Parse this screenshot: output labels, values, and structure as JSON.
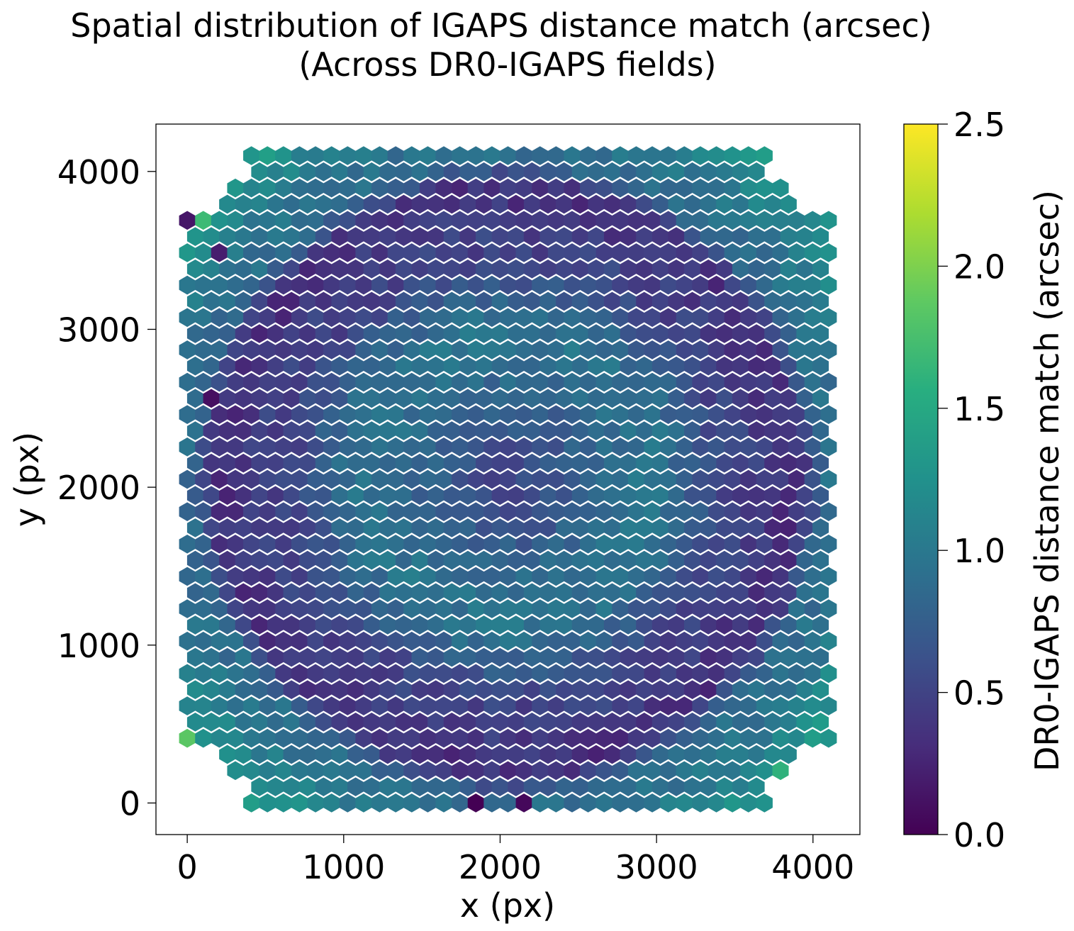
{
  "chart_data": {
    "type": "heatmap",
    "subtype": "hexbin",
    "title_line1": "Spatial distribution of IGAPS distance match (arcsec)",
    "title_line2": "(Across DR0-IGAPS fields)",
    "xlabel": "x (px)",
    "ylabel": "y (px)",
    "colorbar_label": "DR0-IGAPS distance match (arcsec)",
    "colormap": "viridis",
    "xlim": [
      -200,
      4300
    ],
    "ylim": [
      -200,
      4300
    ],
    "x_ticks": [
      0,
      1000,
      2000,
      3000,
      4000
    ],
    "x_tick_labels": [
      "0",
      "1000",
      "2000",
      "3000",
      "4000"
    ],
    "y_ticks": [
      0,
      1000,
      2000,
      3000,
      4000
    ],
    "y_tick_labels": [
      "0",
      "1000",
      "2000",
      "3000",
      "4000"
    ],
    "colorbar_range": [
      0.0,
      2.5
    ],
    "colorbar_ticks": [
      0.0,
      0.5,
      1.0,
      1.5,
      2.0,
      2.5
    ],
    "colorbar_tick_labels": [
      "0.0",
      "0.5",
      "1.0",
      "1.5",
      "2.0",
      "2.5"
    ],
    "grid": false,
    "hex_grid": {
      "x_min": 0,
      "x_max": 4100,
      "y_min": 0,
      "y_max": 4100,
      "nx": 41,
      "ny": 41
    },
    "data_summary": {
      "center_value": 0.55,
      "central_ring_value": 0.95,
      "mid_ring_value": 0.5,
      "outer_ring_value": 0.35,
      "edge_value": 0.9,
      "corner_value": 1.5,
      "noise": 0.12
    },
    "notable_bins": [
      {
        "x": 0,
        "y": 300,
        "value": 1.85
      },
      {
        "x": 100,
        "y": 3860,
        "value": 1.7
      },
      {
        "x": 3950,
        "y": 50,
        "value": 1.6
      },
      {
        "x": 1800,
        "y": 0,
        "value": 0.0
      },
      {
        "x": 2200,
        "y": 0,
        "value": 0.05
      },
      {
        "x": 200,
        "y": 2550,
        "value": 0.1
      },
      {
        "x": 0,
        "y": 3800,
        "value": 0.15
      },
      {
        "x": 250,
        "y": 3450,
        "value": 0.2
      }
    ]
  }
}
